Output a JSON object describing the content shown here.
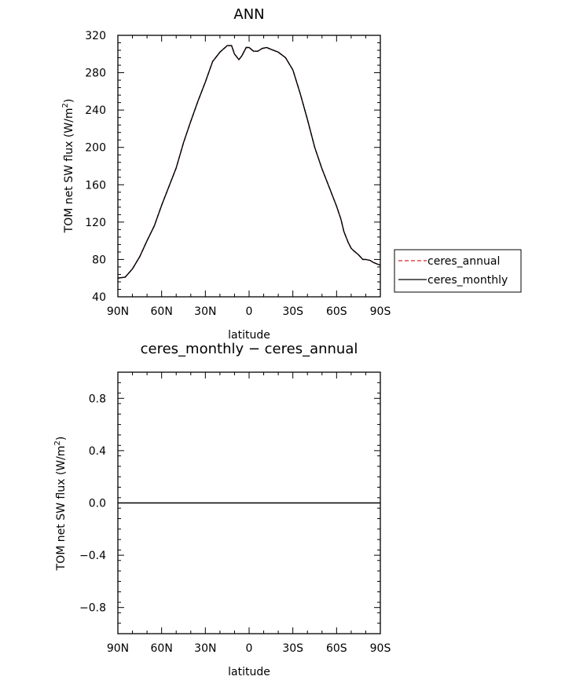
{
  "chart_data": [
    {
      "type": "line",
      "title": "ANN",
      "xlabel": "latitude",
      "ylabel_main": "TOM net SW flux (W/m",
      "ylabel_sup": "2",
      "ylabel_end": ")",
      "xlim": [
        90,
        -90
      ],
      "ylim": [
        40,
        320
      ],
      "x_ticks": [
        {
          "value": 90,
          "label": "90N"
        },
        {
          "value": 60,
          "label": "60N"
        },
        {
          "value": 30,
          "label": "30N"
        },
        {
          "value": 0,
          "label": "0"
        },
        {
          "value": -30,
          "label": "30S"
        },
        {
          "value": -60,
          "label": "60S"
        },
        {
          "value": -90,
          "label": "90S"
        }
      ],
      "y_ticks": [
        {
          "value": 40,
          "label": "40"
        },
        {
          "value": 80,
          "label": "80"
        },
        {
          "value": 120,
          "label": "120"
        },
        {
          "value": 160,
          "label": "160"
        },
        {
          "value": 200,
          "label": "200"
        },
        {
          "value": 240,
          "label": "240"
        },
        {
          "value": 280,
          "label": "280"
        },
        {
          "value": 320,
          "label": "320"
        }
      ],
      "grid": false,
      "legend_position": "right",
      "series": [
        {
          "name": "ceres_annual",
          "color": "#d62728",
          "dash": "dashed",
          "x": [
            90,
            85,
            80,
            75,
            70,
            65,
            60,
            55,
            50,
            45,
            40,
            35,
            30,
            25,
            20,
            15,
            12,
            10,
            7,
            5,
            2,
            0,
            -3,
            -6,
            -9,
            -12,
            -15,
            -20,
            -25,
            -30,
            -35,
            -40,
            -45,
            -50,
            -55,
            -60,
            -63,
            -65,
            -68,
            -70,
            -72,
            -75,
            -78,
            -80,
            -83,
            -85,
            -88,
            -90
          ],
          "y": [
            60,
            61,
            70,
            83,
            100,
            116,
            138,
            158,
            178,
            205,
            228,
            250,
            270,
            292,
            302,
            309,
            309,
            300,
            294,
            298,
            307,
            307,
            303,
            303,
            306,
            307,
            305,
            302,
            296,
            283,
            258,
            230,
            200,
            177,
            157,
            137,
            123,
            110,
            98,
            92,
            89,
            85,
            80,
            80,
            79,
            77,
            75,
            74
          ]
        },
        {
          "name": "ceres_monthly",
          "color": "#000000",
          "dash": "solid",
          "x": [
            90,
            85,
            80,
            75,
            70,
            65,
            60,
            55,
            50,
            45,
            40,
            35,
            30,
            25,
            20,
            15,
            12,
            10,
            7,
            5,
            2,
            0,
            -3,
            -6,
            -9,
            -12,
            -15,
            -20,
            -25,
            -30,
            -35,
            -40,
            -45,
            -50,
            -55,
            -60,
            -63,
            -65,
            -68,
            -70,
            -72,
            -75,
            -78,
            -80,
            -83,
            -85,
            -88,
            -90
          ],
          "y": [
            60,
            61,
            70,
            83,
            100,
            116,
            138,
            158,
            178,
            205,
            228,
            250,
            270,
            292,
            302,
            309,
            309,
            300,
            294,
            298,
            307,
            307,
            303,
            303,
            306,
            307,
            305,
            302,
            296,
            283,
            258,
            230,
            200,
            177,
            157,
            137,
            123,
            110,
            98,
            92,
            89,
            85,
            80,
            80,
            79,
            77,
            75,
            74
          ]
        }
      ]
    },
    {
      "type": "line",
      "title": "ceres_monthly − ceres_annual",
      "xlabel": "latitude",
      "ylabel_main": "TOM net SW flux (W/m",
      "ylabel_sup": "2",
      "ylabel_end": ")",
      "xlim": [
        90,
        -90
      ],
      "ylim": [
        -1,
        1
      ],
      "x_ticks": [
        {
          "value": 90,
          "label": "90N"
        },
        {
          "value": 60,
          "label": "60N"
        },
        {
          "value": 30,
          "label": "30N"
        },
        {
          "value": 0,
          "label": "0"
        },
        {
          "value": -30,
          "label": "30S"
        },
        {
          "value": -60,
          "label": "60S"
        },
        {
          "value": -90,
          "label": "90S"
        }
      ],
      "y_ticks": [
        {
          "value": -0.8,
          "label": "−0.8"
        },
        {
          "value": -0.4,
          "label": "−0.4"
        },
        {
          "value": 0.0,
          "label": "0.0"
        },
        {
          "value": 0.4,
          "label": "0.4"
        },
        {
          "value": 0.8,
          "label": "0.8"
        }
      ],
      "grid": false,
      "series": [
        {
          "color": "#000000",
          "dash": "solid",
          "x": [
            90,
            -90
          ],
          "y": [
            0,
            0
          ]
        }
      ]
    }
  ]
}
